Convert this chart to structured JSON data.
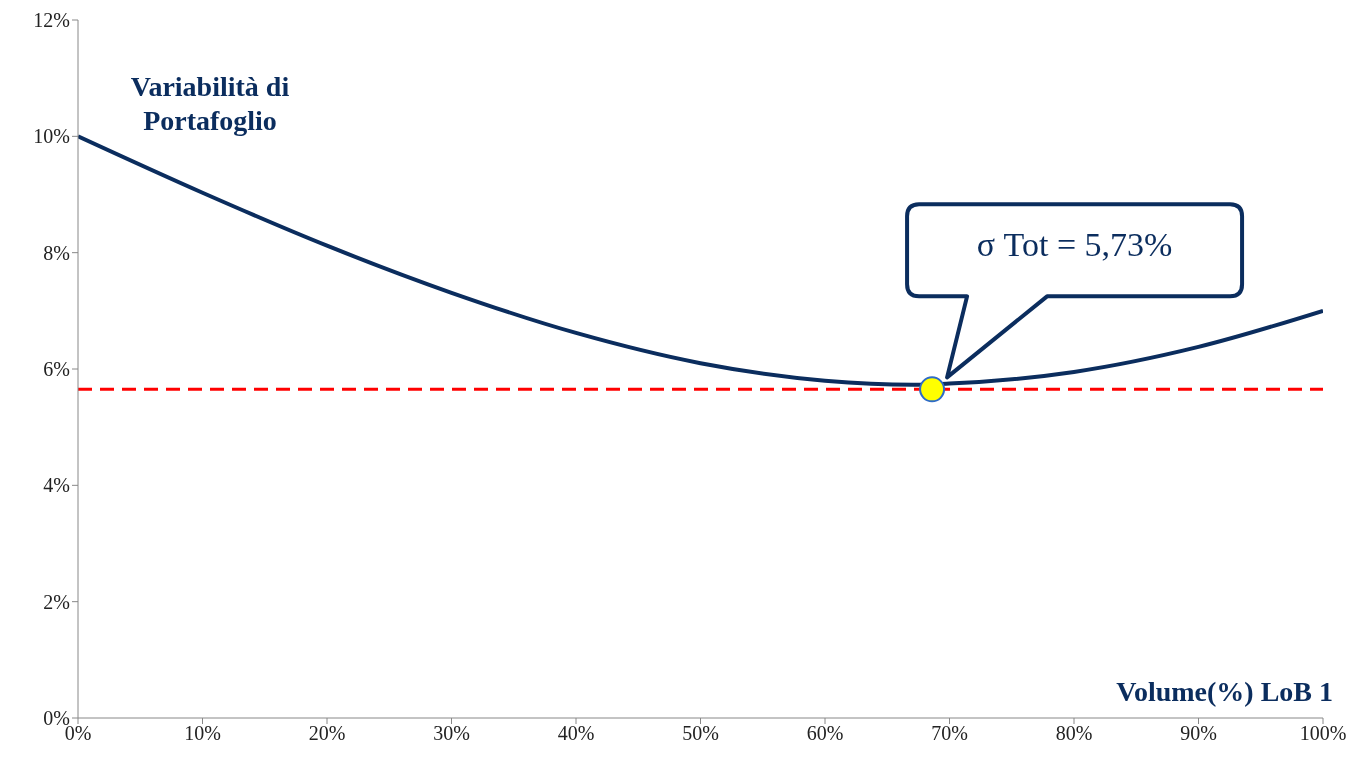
{
  "chart_data": {
    "type": "line",
    "ylabel": "Variabilità di Portafoglio",
    "xlabel": "Volume(%) LoB 1",
    "xlim": [
      0,
      100
    ],
    "ylim": [
      0,
      12
    ],
    "xticks": [
      {
        "value": 0,
        "label": "0%"
      },
      {
        "value": 10,
        "label": "10%"
      },
      {
        "value": 20,
        "label": "20%"
      },
      {
        "value": 30,
        "label": "30%"
      },
      {
        "value": 40,
        "label": "40%"
      },
      {
        "value": 50,
        "label": "50%"
      },
      {
        "value": 60,
        "label": "60%"
      },
      {
        "value": 70,
        "label": "70%"
      },
      {
        "value": 80,
        "label": "80%"
      },
      {
        "value": 90,
        "label": "90%"
      },
      {
        "value": 100,
        "label": "100%"
      }
    ],
    "yticks": [
      {
        "value": 0,
        "label": "0%"
      },
      {
        "value": 2,
        "label": "2%"
      },
      {
        "value": 4,
        "label": "4%"
      },
      {
        "value": 6,
        "label": "6%"
      },
      {
        "value": 8,
        "label": "8%"
      },
      {
        "value": 10,
        "label": "10%"
      },
      {
        "value": 12,
        "label": "12%"
      }
    ],
    "grid": false,
    "marker": "none",
    "line_style": "solid",
    "series": [
      {
        "color": "#0b2d5e",
        "x": [
          0,
          10,
          20,
          30,
          40,
          50,
          60,
          67.1,
          70,
          80,
          90,
          100
        ],
        "values": [
          10,
          9.03,
          8.12,
          7.31,
          6.62,
          6.1,
          5.8,
          5.73,
          5.75,
          5.95,
          6.38,
          7
        ]
      },
      {
        "type": "scatter",
        "color": "#ffff00",
        "marker": "circle",
        "x": [
          68.6
        ],
        "values": [
          5.65
        ]
      }
    ],
    "ref_lines": [
      {
        "axis": "y",
        "value": 5.65,
        "color": "#ff0000",
        "line_style": "dashed"
      }
    ],
    "annotations": [
      "σ Tot = 5,73%"
    ]
  }
}
